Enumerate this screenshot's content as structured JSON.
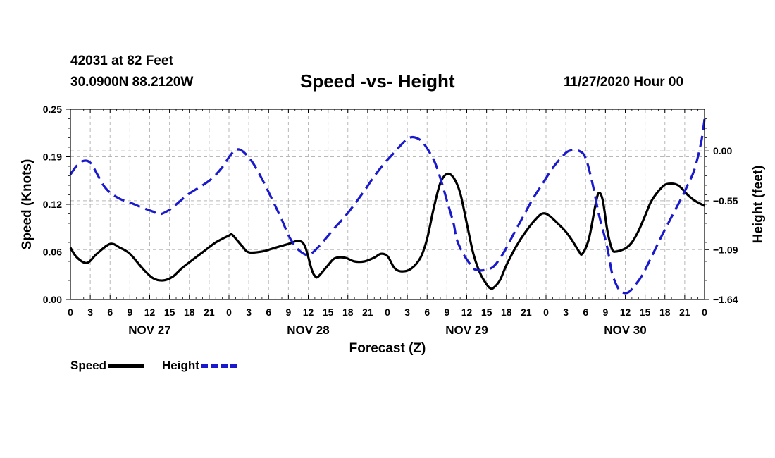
{
  "header": {
    "station": "42031 at 82 Feet",
    "coords": "30.0900N 88.2120W",
    "title": "Speed -vs- Height",
    "date": "11/27/2020 Hour 00"
  },
  "colors": {
    "speed": "#000000",
    "height": "#1a1acc",
    "grid": "#b8b8b8"
  },
  "chart_data": {
    "type": "line",
    "title": "Speed -vs- Height",
    "xlabel": "Forecast (Z)",
    "ylabel_left": "Speed (Knots)",
    "ylabel_right": "Height (feet)",
    "x_range_hours": [
      0,
      96
    ],
    "ylim_left": [
      0,
      0.25
    ],
    "ylim_right": [
      -1.64,
      0.46
    ],
    "left_ticks": [
      {
        "v": 0.0,
        "label": "0.00"
      },
      {
        "v": 0.0625,
        "label": "0.06"
      },
      {
        "v": 0.125,
        "label": "0.12"
      },
      {
        "v": 0.1875,
        "label": "0.19"
      },
      {
        "v": 0.25,
        "label": "0.25"
      }
    ],
    "right_ticks": [
      {
        "v": 0.0,
        "label": "0.00"
      },
      {
        "v": -0.55,
        "label": "−0.55"
      },
      {
        "v": -1.09,
        "label": "−1.09"
      },
      {
        "v": -1.64,
        "label": "−1.64"
      }
    ],
    "x_tick_labels": [
      "0",
      "3",
      "6",
      "9",
      "12",
      "15",
      "18",
      "21",
      "0",
      "3",
      "6",
      "9",
      "12",
      "15",
      "18",
      "21",
      "0",
      "3",
      "6",
      "9",
      "12",
      "15",
      "18",
      "21",
      "0",
      "3",
      "6",
      "9",
      "12",
      "15",
      "18",
      "21",
      "0"
    ],
    "day_labels": [
      {
        "hour": 12,
        "label": "NOV 27"
      },
      {
        "hour": 36,
        "label": "NOV 28"
      },
      {
        "hour": 60,
        "label": "NOV 29"
      },
      {
        "hour": 84,
        "label": "NOV 30"
      }
    ],
    "series": [
      {
        "name": "Speed",
        "axis": "left",
        "style": "solid",
        "points": [
          [
            0,
            0.068
          ],
          [
            1,
            0.055
          ],
          [
            2.5,
            0.048
          ],
          [
            4,
            0.06
          ],
          [
            6,
            0.073
          ],
          [
            7.5,
            0.068
          ],
          [
            9,
            0.06
          ],
          [
            11,
            0.04
          ],
          [
            12.5,
            0.028
          ],
          [
            14,
            0.025
          ],
          [
            15.5,
            0.03
          ],
          [
            17,
            0.042
          ],
          [
            20,
            0.062
          ],
          [
            22,
            0.075
          ],
          [
            24,
            0.084
          ],
          [
            24.5,
            0.085
          ],
          [
            26,
            0.07
          ],
          [
            27,
            0.062
          ],
          [
            29,
            0.063
          ],
          [
            31,
            0.068
          ],
          [
            33,
            0.073
          ],
          [
            34.5,
            0.077
          ],
          [
            35.5,
            0.07
          ],
          [
            36.5,
            0.04
          ],
          [
            37,
            0.031
          ],
          [
            37.5,
            0.03
          ],
          [
            39,
            0.045
          ],
          [
            40,
            0.054
          ],
          [
            41.5,
            0.055
          ],
          [
            43,
            0.05
          ],
          [
            44.5,
            0.05
          ],
          [
            46,
            0.055
          ],
          [
            47,
            0.06
          ],
          [
            48,
            0.057
          ],
          [
            49,
            0.042
          ],
          [
            50,
            0.037
          ],
          [
            51.5,
            0.04
          ],
          [
            53,
            0.055
          ],
          [
            54,
            0.08
          ],
          [
            55,
            0.12
          ],
          [
            56,
            0.153
          ],
          [
            57,
            0.165
          ],
          [
            58,
            0.16
          ],
          [
            59,
            0.14
          ],
          [
            60,
            0.1
          ],
          [
            61,
            0.06
          ],
          [
            62,
            0.035
          ],
          [
            63,
            0.02
          ],
          [
            63.5,
            0.015
          ],
          [
            64,
            0.015
          ],
          [
            65,
            0.025
          ],
          [
            66,
            0.045
          ],
          [
            67.5,
            0.07
          ],
          [
            69,
            0.09
          ],
          [
            70.5,
            0.106
          ],
          [
            71.5,
            0.113
          ],
          [
            72.5,
            0.11
          ],
          [
            74,
            0.098
          ],
          [
            75,
            0.089
          ],
          [
            76,
            0.077
          ],
          [
            77,
            0.063
          ],
          [
            77.5,
            0.06
          ],
          [
            78.5,
            0.08
          ],
          [
            79.5,
            0.125
          ],
          [
            80,
            0.14
          ],
          [
            80.6,
            0.13
          ],
          [
            81.3,
            0.09
          ],
          [
            82,
            0.066
          ],
          [
            82.6,
            0.063
          ],
          [
            84,
            0.067
          ],
          [
            85,
            0.075
          ],
          [
            86,
            0.09
          ],
          [
            87,
            0.11
          ],
          [
            88,
            0.13
          ],
          [
            89.5,
            0.147
          ],
          [
            90.5,
            0.152
          ],
          [
            92,
            0.15
          ],
          [
            93.5,
            0.137
          ],
          [
            94.5,
            0.13
          ],
          [
            96,
            0.123
          ]
        ]
      },
      {
        "name": "Height",
        "axis": "right",
        "style": "dashed",
        "points": [
          [
            0,
            -0.26
          ],
          [
            1,
            -0.16
          ],
          [
            2,
            -0.11
          ],
          [
            3,
            -0.13
          ],
          [
            4,
            -0.25
          ],
          [
            5,
            -0.38
          ],
          [
            6,
            -0.46
          ],
          [
            7.5,
            -0.53
          ],
          [
            9,
            -0.57
          ],
          [
            11,
            -0.63
          ],
          [
            12.5,
            -0.67
          ],
          [
            13.5,
            -0.7
          ],
          [
            15,
            -0.65
          ],
          [
            16.5,
            -0.56
          ],
          [
            18,
            -0.47
          ],
          [
            20,
            -0.38
          ],
          [
            21.5,
            -0.3
          ],
          [
            23,
            -0.18
          ],
          [
            24,
            -0.07
          ],
          [
            25,
            0.01
          ],
          [
            26,
            0.0
          ],
          [
            27.5,
            -0.12
          ],
          [
            29,
            -0.31
          ],
          [
            30.5,
            -0.53
          ],
          [
            32,
            -0.76
          ],
          [
            33,
            -0.93
          ],
          [
            34,
            -1.05
          ],
          [
            35,
            -1.12
          ],
          [
            36,
            -1.15
          ],
          [
            37,
            -1.1
          ],
          [
            38.5,
            -0.98
          ],
          [
            40,
            -0.85
          ],
          [
            41.5,
            -0.73
          ],
          [
            43,
            -0.59
          ],
          [
            44.5,
            -0.44
          ],
          [
            46,
            -0.28
          ],
          [
            47.5,
            -0.14
          ],
          [
            49,
            -0.02
          ],
          [
            50.5,
            0.1
          ],
          [
            51.5,
            0.15
          ],
          [
            52.5,
            0.14
          ],
          [
            53.5,
            0.08
          ],
          [
            55,
            -0.1
          ],
          [
            56,
            -0.3
          ],
          [
            57,
            -0.55
          ],
          [
            58,
            -0.8
          ],
          [
            58.5,
            -0.98
          ],
          [
            59.5,
            -1.14
          ],
          [
            60.5,
            -1.25
          ],
          [
            61,
            -1.3
          ],
          [
            62,
            -1.32
          ],
          [
            63,
            -1.31
          ],
          [
            64,
            -1.28
          ],
          [
            65,
            -1.19
          ],
          [
            66,
            -1.07
          ],
          [
            67,
            -0.93
          ],
          [
            68.5,
            -0.73
          ],
          [
            70,
            -0.53
          ],
          [
            71.5,
            -0.36
          ],
          [
            73,
            -0.19
          ],
          [
            74.5,
            -0.06
          ],
          [
            75.5,
            0.0
          ],
          [
            77,
            0.0
          ],
          [
            78,
            -0.08
          ],
          [
            79,
            -0.35
          ],
          [
            80,
            -0.7
          ],
          [
            81,
            -0.98
          ],
          [
            81.5,
            -1.15
          ],
          [
            82,
            -1.35
          ],
          [
            82.8,
            -1.5
          ],
          [
            83.5,
            -1.56
          ],
          [
            84.5,
            -1.56
          ],
          [
            85.5,
            -1.48
          ],
          [
            86.5,
            -1.38
          ],
          [
            87.5,
            -1.24
          ],
          [
            88.5,
            -1.09
          ],
          [
            89.5,
            -0.94
          ],
          [
            90.5,
            -0.8
          ],
          [
            91.5,
            -0.66
          ],
          [
            92.5,
            -0.52
          ],
          [
            93.5,
            -0.37
          ],
          [
            94.5,
            -0.2
          ],
          [
            95.5,
            0.1
          ],
          [
            96,
            0.35
          ]
        ]
      }
    ],
    "legend": [
      {
        "label": "Speed",
        "style": "solid"
      },
      {
        "label": "Height",
        "style": "dashed"
      }
    ]
  }
}
